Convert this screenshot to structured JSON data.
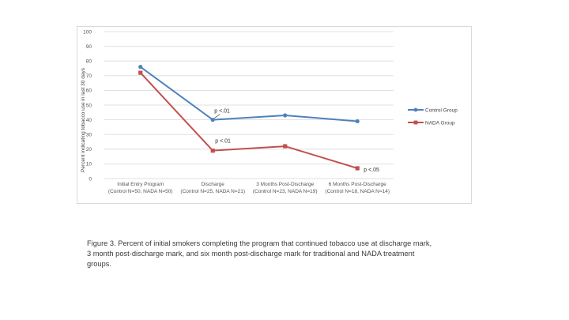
{
  "caption": "Figure 3.  Percent of initial smokers completing the program that continued tobacco use at discharge mark, 3 month post-discharge mark, and six month post-discharge mark for traditional and NADA treatment groups.",
  "chart_data": {
    "type": "line",
    "title": "",
    "ylabel": "Percent indicating tobacco use in last 30 days",
    "xlabel": "",
    "ylim": [
      0,
      100
    ],
    "yticks": [
      0,
      10,
      20,
      30,
      40,
      50,
      60,
      70,
      80,
      90,
      100
    ],
    "grid": true,
    "legend_position": "right",
    "categories": [
      {
        "line1": "Initial Entry Program",
        "line2": "(Control N=50, NADA N=50)"
      },
      {
        "line1": "Discharge",
        "line2": "(Control N=25, NADA N=21)"
      },
      {
        "line1": "3 Months Post-Discharge",
        "line2": "(Control N=23, NADA N=19)"
      },
      {
        "line1": "6 Months Post-Discharge",
        "line2": "(Control N=18, NADA N=14)"
      }
    ],
    "series": [
      {
        "name": "Control Group",
        "color": "#4f81bd",
        "values": [
          76,
          40,
          43,
          39
        ]
      },
      {
        "name": "NADA Group",
        "color": "#c0504d",
        "values": [
          72,
          19,
          22,
          7
        ]
      }
    ],
    "annotations": [
      {
        "text": "p <.01",
        "category_index": 1,
        "series_index": 0
      },
      {
        "text": "p <.01",
        "category_index": 1,
        "series_index": 1
      },
      {
        "text": "p <.05",
        "category_index": 3,
        "series_index": 1
      }
    ]
  }
}
